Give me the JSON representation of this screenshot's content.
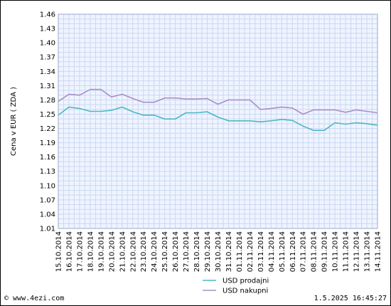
{
  "footer": {
    "copyright": "© www.4ezi.com",
    "timestamp": "1.5.2025 16:45:27"
  },
  "chart_data": {
    "type": "line",
    "ylabel": "Cena v EUR ( ZDA )",
    "xlabel": "",
    "ylim": [
      1.01,
      1.46
    ],
    "yticks": [
      "1.46",
      "1.43",
      "1.40",
      "1.37",
      "1.34",
      "1.31",
      "1.28",
      "1.25",
      "1.22",
      "1.19",
      "1.16",
      "1.13",
      "1.10",
      "1.07",
      "1.04",
      "1.01"
    ],
    "grid": true,
    "legend_position": "bottom-center",
    "categories": [
      "15.10.2014",
      "16.10.2014",
      "17.10.2014",
      "18.10.2014",
      "19.10.2014",
      "20.10.2014",
      "21.10.2014",
      "22.10.2014",
      "23.10.2014",
      "24.10.2014",
      "25.10.2014",
      "26.10.2014",
      "27.10.2014",
      "28.10.2014",
      "29.10.2014",
      "30.10.2014",
      "31.10.2014",
      "01.11.2014",
      "02.11.2014",
      "03.11.2014",
      "04.11.2014",
      "05.11.2014",
      "06.11.2014",
      "07.11.2014",
      "08.11.2014",
      "09.11.2014",
      "10.11.2014",
      "11.11.2014",
      "12.11.2014",
      "13.11.2014",
      "14.11.2014"
    ],
    "series": [
      {
        "name": "USD prodajni",
        "color": "#4cb8c4",
        "values": [
          1.248,
          1.265,
          1.262,
          1.256,
          1.256,
          1.258,
          1.265,
          1.255,
          1.248,
          1.248,
          1.24,
          1.24,
          1.253,
          1.253,
          1.255,
          1.244,
          1.236,
          1.236,
          1.236,
          1.234,
          1.236,
          1.239,
          1.237,
          1.225,
          1.216,
          1.216,
          1.232,
          1.229,
          1.232,
          1.23,
          1.227
        ]
      },
      {
        "name": "USD nakupni",
        "color": "#a98fc8",
        "values": [
          1.277,
          1.292,
          1.29,
          1.302,
          1.302,
          1.286,
          1.292,
          1.283,
          1.275,
          1.275,
          1.284,
          1.284,
          1.282,
          1.282,
          1.283,
          1.271,
          1.28,
          1.28,
          1.28,
          1.26,
          1.262,
          1.265,
          1.263,
          1.25,
          1.259,
          1.259,
          1.259,
          1.254,
          1.259,
          1.256,
          1.253
        ]
      }
    ]
  }
}
